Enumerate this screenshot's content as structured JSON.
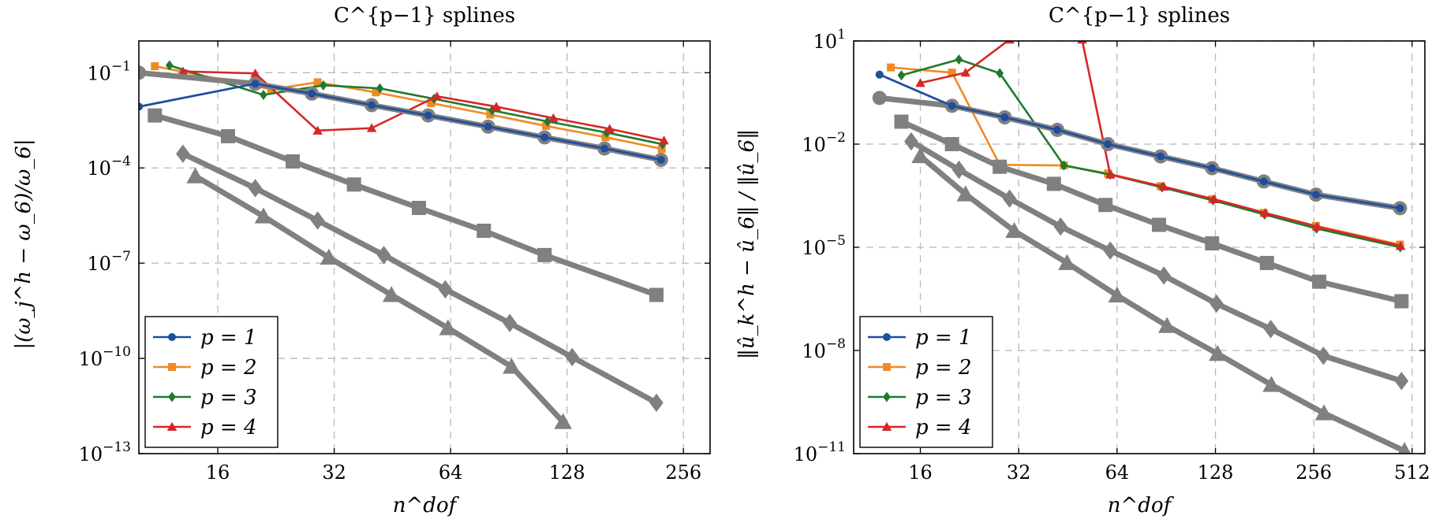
{
  "chart_data": [
    {
      "type": "line",
      "title": "C^{p−1} splines",
      "xlabel": "n^dof",
      "ylabel": "|(ω_j^h − ω_6)/ω_6|",
      "xscale": "log2",
      "yscale": "log10",
      "xlim": [
        10,
        300
      ],
      "ylim": [
        1e-13,
        1
      ],
      "xticks": [
        16,
        32,
        64,
        128,
        256
      ],
      "yticks": [
        1e-13,
        1e-10,
        1e-07,
        0.0001,
        0.1
      ],
      "xtick_labels": [
        "16",
        "32",
        "64",
        "128",
        "256"
      ],
      "ytick_labels": [
        "10",
        "10",
        "10",
        "10",
        "10"
      ],
      "ytick_exps": [
        "−13",
        "−10",
        "−7",
        "−4",
        "−1"
      ],
      "grid": true,
      "legend_position": "bottom-left",
      "series": [
        {
          "name": "p = 1",
          "color": "#1f4e9c",
          "marker": "circle",
          "x": [
            10,
            20,
            28,
            40,
            56,
            80,
            112,
            160,
            224
          ],
          "y": [
            0.0085,
            0.045,
            0.022,
            0.0095,
            0.0045,
            0.002,
            0.00092,
            0.00041,
            0.00018
          ]
        },
        {
          "name": "p = 2",
          "color": "#f08a24",
          "marker": "square",
          "x": [
            11,
            22,
            29,
            41,
            57,
            81,
            113,
            161,
            225
          ],
          "y": [
            0.16,
            0.03,
            0.05,
            0.024,
            0.011,
            0.0048,
            0.0021,
            0.00093,
            0.0004
          ]
        },
        {
          "name": "p = 3",
          "color": "#1f7a2e",
          "marker": "diamond",
          "x": [
            12,
            21,
            30,
            42,
            58,
            82,
            114,
            162,
            226
          ],
          "y": [
            0.17,
            0.02,
            0.04,
            0.032,
            0.015,
            0.0065,
            0.0029,
            0.0013,
            0.00056
          ]
        },
        {
          "name": "p = 4",
          "color": "#d62728",
          "marker": "triangle",
          "x": [
            13,
            20,
            29,
            40,
            59,
            84,
            118,
            165,
            228
          ],
          "y": [
            0.11,
            0.095,
            0.0015,
            0.0018,
            0.018,
            0.0085,
            0.0037,
            0.0017,
            0.00073
          ]
        },
        {
          "name": "",
          "color": "#808080",
          "marker": "circle",
          "x": [
            10,
            20,
            28,
            40,
            56,
            80,
            112,
            160,
            224
          ],
          "y": [
            0.1,
            0.045,
            0.022,
            0.0095,
            0.0045,
            0.002,
            0.00092,
            0.00041,
            0.00018
          ]
        },
        {
          "name": "",
          "color": "#808080",
          "marker": "square",
          "x": [
            11,
            17,
            25,
            36,
            53,
            78,
            112,
            218
          ],
          "y": [
            0.0045,
            0.001,
            0.00016,
            3e-05,
            5.5e-06,
            1.05e-06,
            1.8e-07,
            1e-08
          ]
        },
        {
          "name": "",
          "color": "#808080",
          "marker": "diamond",
          "x": [
            13,
            20,
            29,
            43,
            62,
            91,
            132,
            218
          ],
          "y": [
            0.00028,
            2.3e-05,
            2.2e-06,
            1.8e-07,
            1.5e-08,
            1.3e-09,
            1.1e-10,
            4e-12
          ]
        },
        {
          "name": "",
          "color": "#808080",
          "marker": "triangle",
          "x": [
            14,
            21,
            31,
            45,
            63,
            92,
            125
          ],
          "y": [
            5.5e-05,
            3e-06,
            1.5e-07,
            1e-08,
            9e-10,
            5.5e-11,
            1e-12
          ]
        }
      ]
    },
    {
      "type": "line",
      "title": "C^{p−1} splines",
      "xlabel": "n^dof",
      "ylabel": "‖û_k^h − û_6‖ / ‖û_6‖",
      "xscale": "log2",
      "yscale": "log10",
      "xlim": [
        10,
        560
      ],
      "ylim": [
        1e-11,
        10
      ],
      "xticks": [
        16,
        32,
        64,
        128,
        256,
        512
      ],
      "yticks": [
        1e-11,
        1e-08,
        1e-05,
        0.01,
        10
      ],
      "xtick_labels": [
        "16",
        "32",
        "64",
        "128",
        "256",
        "512"
      ],
      "ytick_labels": [
        "10",
        "10",
        "10",
        "10",
        "10"
      ],
      "ytick_exps": [
        "−11",
        "−8",
        "−5",
        "−2",
        "1"
      ],
      "grid": true,
      "legend_position": "bottom-left",
      "series": [
        {
          "name": "p = 1",
          "color": "#1f4e9c",
          "marker": "circle",
          "x": [
            12,
            20,
            29,
            42,
            60,
            87,
            125,
            180,
            260,
            470
          ],
          "y": [
            1.05,
            0.13,
            0.06,
            0.026,
            0.01,
            0.0044,
            0.002,
            0.00082,
            0.00034,
            0.000137
          ]
        },
        {
          "name": "p = 2",
          "color": "#f08a24",
          "marker": "square",
          "x": [
            13,
            20,
            28,
            44,
            60,
            87,
            125,
            180,
            260,
            470
          ],
          "y": [
            1.7,
            1.2,
            0.0025,
            0.0024,
            0.0014,
            0.0006,
            0.00025,
            0.0001,
            4.2e-05,
            1.2e-05
          ]
        },
        {
          "name": "p = 3",
          "color": "#1f7a2e",
          "marker": "diamond",
          "x": [
            14,
            21,
            28,
            44,
            61,
            88,
            126,
            181,
            261,
            471
          ],
          "y": [
            1,
            2.9,
            1.15,
            0.0024,
            0.0013,
            0.00055,
            0.00023,
            9e-05,
            3.5e-05,
            1e-05
          ]
        },
        {
          "name": "p = 4",
          "color": "#d62728",
          "marker": "triangle",
          "x": [
            16,
            22,
            30,
            50,
            61,
            89,
            127,
            182,
            262,
            472
          ],
          "y": [
            0.6,
            1.2,
            11,
            11,
            0.0013,
            0.00058,
            0.00025,
            0.0001,
            4e-05,
            1.1e-05
          ]
        },
        {
          "name": "",
          "color": "#808080",
          "marker": "circle",
          "x": [
            12,
            20,
            29,
            42,
            60,
            87,
            125,
            180,
            260,
            470
          ],
          "y": [
            0.22,
            0.13,
            0.06,
            0.026,
            0.01,
            0.0044,
            0.002,
            0.00082,
            0.00034,
            0.000137
          ]
        },
        {
          "name": "",
          "color": "#808080",
          "marker": "square",
          "x": [
            14,
            20,
            28,
            41,
            59,
            86,
            125,
            184,
            266,
            475
          ],
          "y": [
            0.045,
            0.01,
            0.0022,
            0.0007,
            0.00017,
            4.5e-05,
            1.3e-05,
            3.5e-06,
            1e-06,
            2.7e-07
          ]
        },
        {
          "name": "",
          "color": "#808080",
          "marker": "diamond",
          "x": [
            15,
            21,
            30,
            43,
            61,
            89,
            129,
            189,
            274,
            475
          ],
          "y": [
            0.012,
            0.0018,
            0.00026,
            4e-05,
            8e-06,
            1.5e-06,
            2.3e-07,
            4.2e-08,
            7e-09,
            1.3e-09
          ]
        },
        {
          "name": "",
          "color": "#808080",
          "marker": "triangle",
          "x": [
            16,
            22,
            31,
            45,
            64,
            91,
            130,
            190,
            275,
            485
          ],
          "y": [
            0.0045,
            0.00035,
            3e-05,
            3.5e-06,
            4e-07,
            5.2e-08,
            8e-09,
            1e-09,
            1.5e-10,
            1.2e-11
          ]
        }
      ]
    }
  ]
}
